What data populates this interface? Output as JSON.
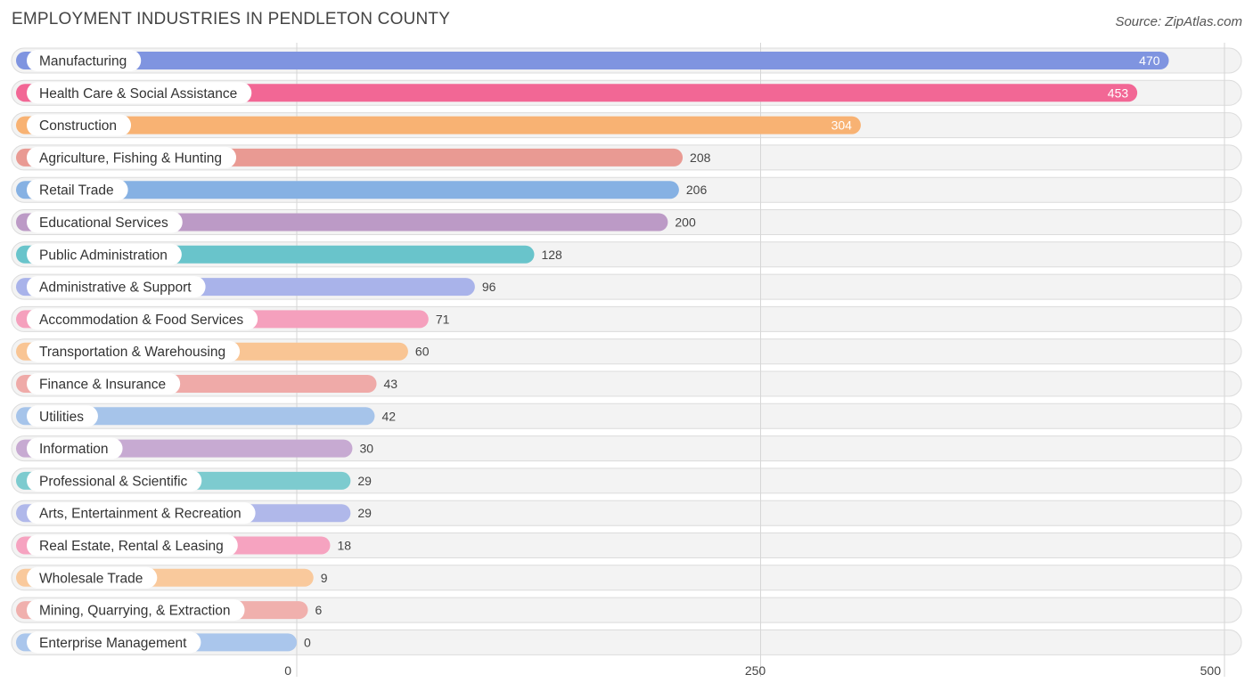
{
  "header": {
    "title": "EMPLOYMENT INDUSTRIES IN PENDLETON COUNTY",
    "source": "Source: ZipAtlas.com"
  },
  "chart_data": {
    "type": "bar",
    "orientation": "horizontal",
    "title": "EMPLOYMENT INDUSTRIES IN PENDLETON COUNTY",
    "xlabel": "",
    "ylabel": "",
    "xlim": [
      0,
      500
    ],
    "ticks": [
      0,
      250,
      500
    ],
    "tick_labels": [
      "0",
      "250",
      "500"
    ],
    "categories": [
      "Manufacturing",
      "Health Care & Social Assistance",
      "Construction",
      "Agriculture, Fishing & Hunting",
      "Retail Trade",
      "Educational Services",
      "Public Administration",
      "Administrative & Support",
      "Accommodation & Food Services",
      "Transportation & Warehousing",
      "Finance & Insurance",
      "Utilities",
      "Information",
      "Professional & Scientific",
      "Arts, Entertainment & Recreation",
      "Real Estate, Rental & Leasing",
      "Wholesale Trade",
      "Mining, Quarrying, & Extraction",
      "Enterprise Management"
    ],
    "values": [
      470,
      453,
      304,
      208,
      206,
      200,
      128,
      96,
      71,
      60,
      43,
      42,
      30,
      29,
      29,
      18,
      9,
      6,
      0
    ],
    "value_labels": [
      "470",
      "453",
      "304",
      "208",
      "206",
      "200",
      "128",
      "96",
      "71",
      "60",
      "43",
      "42",
      "30",
      "29",
      "29",
      "18",
      "9",
      "6",
      "0"
    ],
    "colors": [
      "#7f94e0",
      "#f26795",
      "#f8b273",
      "#e99a93",
      "#86b1e3",
      "#bc9ac6",
      "#69c4cb",
      "#a9b3ea",
      "#f5a0bd",
      "#f9c594",
      "#efaaa8",
      "#a6c4ea",
      "#c7aad2",
      "#7dcbcf",
      "#b0b8ea",
      "#f6a3c0",
      "#f9c99c",
      "#f0b0ad",
      "#aac6ec"
    ]
  }
}
